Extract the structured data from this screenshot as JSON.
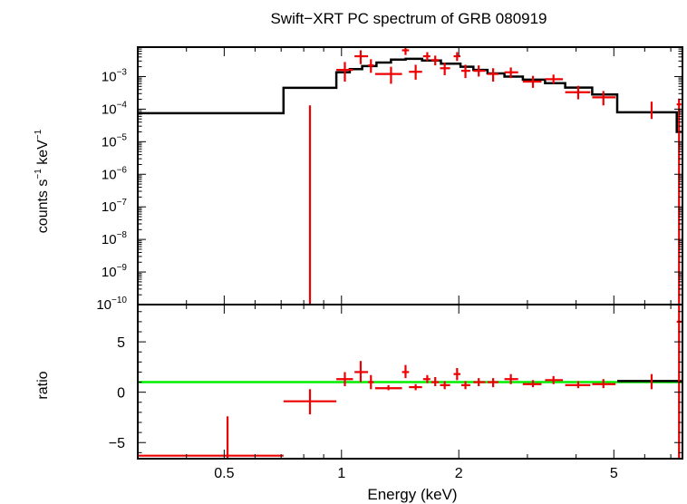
{
  "chart_data": {
    "type": "scatter",
    "title": "Swift−XRT PC spectrum of GRB 080919",
    "xlabel": "Energy (keV)",
    "x_scale": "log",
    "xlim": [
      0.3,
      7.5
    ],
    "x_ticks": [
      {
        "value": 0.5,
        "label": "0.5"
      },
      {
        "value": 1,
        "label": "1"
      },
      {
        "value": 2,
        "label": "2"
      },
      {
        "value": 5,
        "label": "5"
      }
    ],
    "colors": {
      "data": "#ee0000",
      "model": "#000000",
      "unity": "#00ee00",
      "frame": "#000000"
    },
    "panels": [
      {
        "name": "spectrum",
        "ylabel_main": "counts s",
        "ylabel_sup1": "−1",
        "ylabel_mid": " keV",
        "ylabel_sup2": "−1",
        "y_scale": "log",
        "ylim": [
          1e-10,
          0.008
        ],
        "y_ticks": [
          {
            "value": 0.001,
            "base": "10",
            "exp": "−3"
          },
          {
            "value": 0.0001,
            "base": "10",
            "exp": "−4"
          },
          {
            "value": 1e-05,
            "base": "10",
            "exp": "−5"
          },
          {
            "value": 1e-06,
            "base": "10",
            "exp": "−6"
          },
          {
            "value": 1e-07,
            "base": "10",
            "exp": "−7"
          },
          {
            "value": 1e-08,
            "base": "10",
            "exp": "−8"
          },
          {
            "value": 1e-09,
            "base": "10",
            "exp": "−9"
          },
          {
            "value": 1e-10,
            "base": "10",
            "exp": "−10"
          }
        ],
        "data_points": [
          {
            "x": 0.83,
            "xlo": 0.83,
            "xhi": 0.83,
            "y": 1e-10,
            "ylo": 1e-10,
            "yhi": 0.00013
          },
          {
            "x": 1.02,
            "xlo": 0.97,
            "xhi": 1.07,
            "y": 0.0016,
            "ylo": 0.0007,
            "yhi": 0.0028
          },
          {
            "x": 1.12,
            "xlo": 1.08,
            "xhi": 1.17,
            "y": 0.0042,
            "ylo": 0.0024,
            "yhi": 0.0064
          },
          {
            "x": 1.19,
            "xlo": 1.17,
            "xhi": 1.21,
            "y": 0.0022,
            "ylo": 0.0013,
            "yhi": 0.0034
          },
          {
            "x": 1.34,
            "xlo": 1.22,
            "xhi": 1.43,
            "y": 0.0012,
            "ylo": 0.0006,
            "yhi": 0.002
          },
          {
            "x": 1.46,
            "xlo": 1.43,
            "xhi": 1.49,
            "y": 0.0064,
            "ylo": 0.0046,
            "yhi": 0.0082
          },
          {
            "x": 1.55,
            "xlo": 1.49,
            "xhi": 1.61,
            "y": 0.0014,
            "ylo": 0.0008,
            "yhi": 0.0023
          },
          {
            "x": 1.66,
            "xlo": 1.62,
            "xhi": 1.69,
            "y": 0.0042,
            "ylo": 0.003,
            "yhi": 0.0056
          },
          {
            "x": 1.74,
            "xlo": 1.7,
            "xhi": 1.78,
            "y": 0.0032,
            "ylo": 0.0022,
            "yhi": 0.0044
          },
          {
            "x": 1.84,
            "xlo": 1.79,
            "xhi": 1.9,
            "y": 0.0018,
            "ylo": 0.0011,
            "yhi": 0.0027
          },
          {
            "x": 1.98,
            "xlo": 1.94,
            "xhi": 2.02,
            "y": 0.0042,
            "ylo": 0.003,
            "yhi": 0.0056
          },
          {
            "x": 2.08,
            "xlo": 2.03,
            "xhi": 2.14,
            "y": 0.0015,
            "ylo": 0.0009,
            "yhi": 0.0023
          },
          {
            "x": 2.25,
            "xlo": 2.18,
            "xhi": 2.34,
            "y": 0.0015,
            "ylo": 0.001,
            "yhi": 0.0022
          },
          {
            "x": 2.45,
            "xlo": 2.37,
            "xhi": 2.53,
            "y": 0.0012,
            "ylo": 0.0007,
            "yhi": 0.0018
          },
          {
            "x": 2.72,
            "xlo": 2.62,
            "xhi": 2.84,
            "y": 0.00135,
            "ylo": 0.0009,
            "yhi": 0.0019
          },
          {
            "x": 3.1,
            "xlo": 2.92,
            "xhi": 3.26,
            "y": 0.0007,
            "ylo": 0.00045,
            "yhi": 0.00105
          },
          {
            "x": 3.5,
            "xlo": 3.33,
            "xhi": 3.7,
            "y": 0.00083,
            "ylo": 0.0006,
            "yhi": 0.00115
          },
          {
            "x": 4.05,
            "xlo": 3.75,
            "xhi": 4.35,
            "y": 0.00033,
            "ylo": 0.0002,
            "yhi": 0.00052
          },
          {
            "x": 4.7,
            "xlo": 4.4,
            "xhi": 5.05,
            "y": 0.00023,
            "ylo": 0.00013,
            "yhi": 0.00036
          },
          {
            "x": 6.25,
            "xlo": 6.25,
            "xhi": 6.25,
            "y": 0.0001,
            "ylo": 5e-05,
            "yhi": 0.00017
          },
          {
            "x": 7.35,
            "xlo": 7.25,
            "xhi": 7.45,
            "y": 0.00014,
            "ylo": 1e-10,
            "yhi": 0.00021
          }
        ],
        "model_steps": [
          {
            "xlo": 0.3,
            "xhi": 0.71,
            "y": 7.5e-05
          },
          {
            "xlo": 0.71,
            "xhi": 0.97,
            "y": 0.00045
          },
          {
            "xlo": 0.97,
            "xhi": 1.05,
            "y": 0.00135
          },
          {
            "xlo": 1.05,
            "xhi": 1.13,
            "y": 0.0017
          },
          {
            "xlo": 1.13,
            "xhi": 1.23,
            "y": 0.0021
          },
          {
            "xlo": 1.23,
            "xhi": 1.34,
            "y": 0.0027
          },
          {
            "xlo": 1.34,
            "xhi": 1.46,
            "y": 0.0033
          },
          {
            "xlo": 1.46,
            "xhi": 1.61,
            "y": 0.0035
          },
          {
            "xlo": 1.61,
            "xhi": 1.8,
            "y": 0.0031
          },
          {
            "xlo": 1.8,
            "xhi": 2.02,
            "y": 0.0025
          },
          {
            "xlo": 2.02,
            "xhi": 2.18,
            "y": 0.002
          },
          {
            "xlo": 2.18,
            "xhi": 2.37,
            "y": 0.0016
          },
          {
            "xlo": 2.37,
            "xhi": 2.62,
            "y": 0.00125
          },
          {
            "xlo": 2.62,
            "xhi": 2.92,
            "y": 0.001
          },
          {
            "xlo": 2.92,
            "xhi": 3.33,
            "y": 0.0008
          },
          {
            "xlo": 3.33,
            "xhi": 3.75,
            "y": 0.00063
          },
          {
            "xlo": 3.75,
            "xhi": 4.4,
            "y": 0.00046
          },
          {
            "xlo": 4.4,
            "xhi": 5.1,
            "y": 0.00028
          },
          {
            "xlo": 5.1,
            "xhi": 7.25,
            "y": 8e-05
          },
          {
            "xlo": 7.25,
            "xhi": 7.45,
            "y": 2e-05
          }
        ]
      },
      {
        "name": "ratio",
        "ylabel": "ratio",
        "y_scale": "linear",
        "ylim": [
          -6.6,
          8.7
        ],
        "y_ticks": [
          {
            "value": 5,
            "label": "5"
          },
          {
            "value": 0,
            "label": "0"
          },
          {
            "value": -5,
            "label": "−5"
          }
        ],
        "unity_line": 1,
        "data_points": [
          {
            "x": 0.51,
            "xlo": 0.3,
            "xhi": 0.71,
            "y": -6.3,
            "ylo": -6.6,
            "yhi": -2.4
          },
          {
            "x": 0.83,
            "xlo": 0.71,
            "xhi": 0.97,
            "y": -0.9,
            "ylo": -2.2,
            "yhi": 0.3
          },
          {
            "x": 1.02,
            "xlo": 0.97,
            "xhi": 1.07,
            "y": 1.3,
            "ylo": 0.6,
            "yhi": 2.0
          },
          {
            "x": 1.12,
            "xlo": 1.08,
            "xhi": 1.17,
            "y": 2.0,
            "ylo": 1.0,
            "yhi": 3.1
          },
          {
            "x": 1.19,
            "xlo": 1.17,
            "xhi": 1.21,
            "y": 1.0,
            "ylo": 0.3,
            "yhi": 1.7
          },
          {
            "x": 1.32,
            "xlo": 1.22,
            "xhi": 1.43,
            "y": 0.4,
            "ylo": 0.2,
            "yhi": 0.7
          },
          {
            "x": 1.46,
            "xlo": 1.43,
            "xhi": 1.49,
            "y": 2.0,
            "ylo": 1.4,
            "yhi": 2.7
          },
          {
            "x": 1.55,
            "xlo": 1.49,
            "xhi": 1.61,
            "y": 0.5,
            "ylo": 0.2,
            "yhi": 0.8
          },
          {
            "x": 1.66,
            "xlo": 1.62,
            "xhi": 1.69,
            "y": 1.3,
            "ylo": 0.9,
            "yhi": 1.7
          },
          {
            "x": 1.74,
            "xlo": 1.7,
            "xhi": 1.78,
            "y": 1.0,
            "ylo": 0.6,
            "yhi": 1.5
          },
          {
            "x": 1.84,
            "xlo": 1.79,
            "xhi": 1.9,
            "y": 0.7,
            "ylo": 0.3,
            "yhi": 1.1
          },
          {
            "x": 1.98,
            "xlo": 1.94,
            "xhi": 2.02,
            "y": 1.8,
            "ylo": 1.2,
            "yhi": 2.4
          },
          {
            "x": 2.08,
            "xlo": 2.03,
            "xhi": 2.14,
            "y": 0.7,
            "ylo": 0.3,
            "yhi": 1.1
          },
          {
            "x": 2.25,
            "xlo": 2.18,
            "xhi": 2.34,
            "y": 1.0,
            "ylo": 0.6,
            "yhi": 1.4
          },
          {
            "x": 2.45,
            "xlo": 2.37,
            "xhi": 2.53,
            "y": 1.0,
            "ylo": 0.5,
            "yhi": 1.4
          },
          {
            "x": 2.72,
            "xlo": 2.62,
            "xhi": 2.84,
            "y": 1.3,
            "ylo": 0.8,
            "yhi": 1.8
          },
          {
            "x": 3.1,
            "xlo": 2.92,
            "xhi": 3.26,
            "y": 0.8,
            "ylo": 0.5,
            "yhi": 1.2
          },
          {
            "x": 3.5,
            "xlo": 3.33,
            "xhi": 3.7,
            "y": 1.2,
            "ylo": 0.8,
            "yhi": 1.6
          },
          {
            "x": 4.05,
            "xlo": 3.75,
            "xhi": 4.35,
            "y": 0.7,
            "ylo": 0.4,
            "yhi": 1.1
          },
          {
            "x": 4.7,
            "xlo": 4.4,
            "xhi": 5.05,
            "y": 0.8,
            "ylo": 0.4,
            "yhi": 1.3
          },
          {
            "x": 6.25,
            "xlo": 6.25,
            "xhi": 6.25,
            "y": 1.0,
            "ylo": 0.3,
            "yhi": 1.8
          },
          {
            "x": 7.35,
            "xlo": 7.25,
            "xhi": 7.45,
            "y": 7.0,
            "ylo": -6.6,
            "yhi": 8.7
          }
        ],
        "model_steps": [
          {
            "xlo": 5.1,
            "xhi": 7.45,
            "y": 1.1
          }
        ]
      }
    ]
  }
}
